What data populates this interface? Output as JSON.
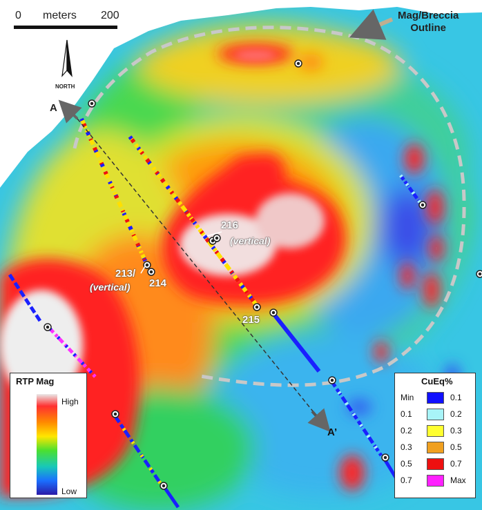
{
  "scale_bar": {
    "start": "0",
    "unit": "meters",
    "end": "200"
  },
  "north_label": "NORTH",
  "outline_label": [
    "Mag/Breccia",
    "Outline"
  ],
  "section_labels": {
    "start": "A",
    "end": "A’"
  },
  "drillholes": [
    {
      "id": "216",
      "note": "(vertical)"
    },
    {
      "id": "213/",
      "note": "(vertical)"
    },
    {
      "id": "214"
    },
    {
      "id": "215"
    }
  ],
  "rtp_legend": {
    "title": "RTP Mag",
    "high": "High",
    "low": "Low",
    "gradient_colors": [
      "#e9e9e9",
      "#ff3030",
      "#ff8a00",
      "#ffe600",
      "#4be030",
      "#18c8b8",
      "#1a6fff",
      "#2a1aa8"
    ]
  },
  "cueq_legend": {
    "title": "CuEq%",
    "rows": [
      {
        "low": "Min",
        "high": "0.1",
        "color": "#1010ff"
      },
      {
        "low": "0.1",
        "high": "0.2",
        "color": "#a8f4f8"
      },
      {
        "low": "0.2",
        "high": "0.3",
        "color": "#ffff30"
      },
      {
        "low": "0.3",
        "high": "0.5",
        "color": "#f0a020"
      },
      {
        "low": "0.5",
        "high": "0.7",
        "color": "#ee1010"
      },
      {
        "low": "0.7",
        "high": "Max",
        "color": "#ff20ff"
      }
    ]
  },
  "colors": {
    "outline_dash": "#c8c8c8",
    "arrow": "#666666",
    "section_line": "#333333"
  }
}
